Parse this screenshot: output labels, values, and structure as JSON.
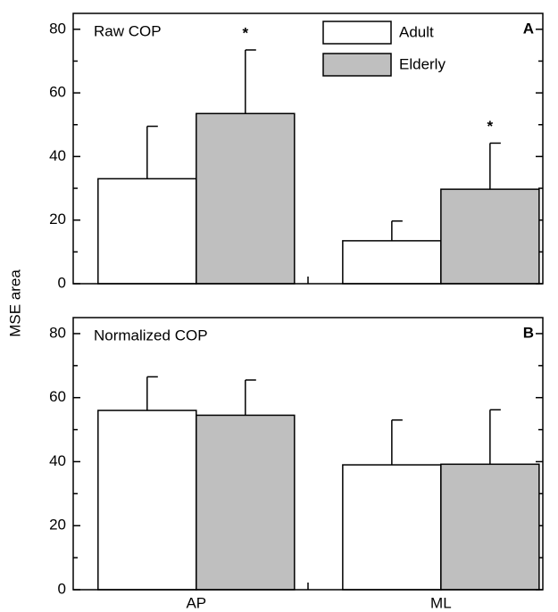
{
  "chart_data": [
    {
      "type": "bar",
      "panel_label": "A",
      "annotation": "Raw COP",
      "ylabel": "MSE area",
      "ylim": [
        0,
        85
      ],
      "yticks": [
        0,
        20,
        40,
        60,
        80
      ],
      "yminorticks": [
        10,
        30,
        50,
        70
      ],
      "legend": "top-center",
      "significance": [
        "*",
        "*"
      ],
      "series": [
        {
          "name": "Adult",
          "color": "#ffffff",
          "values": [
            33,
            13.5
          ],
          "errors": [
            16.5,
            6.2
          ]
        },
        {
          "name": "Elderly",
          "color": "#bfbfbf",
          "values": [
            53.5,
            29.7
          ],
          "errors": [
            20,
            14.5
          ]
        }
      ]
    },
    {
      "type": "bar",
      "panel_label": "B",
      "annotation": "Normalized COP",
      "categories": [
        "AP",
        "ML"
      ],
      "ylim": [
        0,
        85
      ],
      "yticks": [
        0,
        20,
        40,
        60,
        80
      ],
      "yminorticks": [
        10,
        30,
        50,
        70
      ],
      "series": [
        {
          "color": "#ffffff",
          "values": [
            56,
            39
          ],
          "errors": [
            10.5,
            14
          ]
        },
        {
          "color": "#bfbfbf",
          "values": [
            54.5,
            39.2
          ],
          "errors": [
            11,
            17
          ]
        }
      ]
    }
  ]
}
